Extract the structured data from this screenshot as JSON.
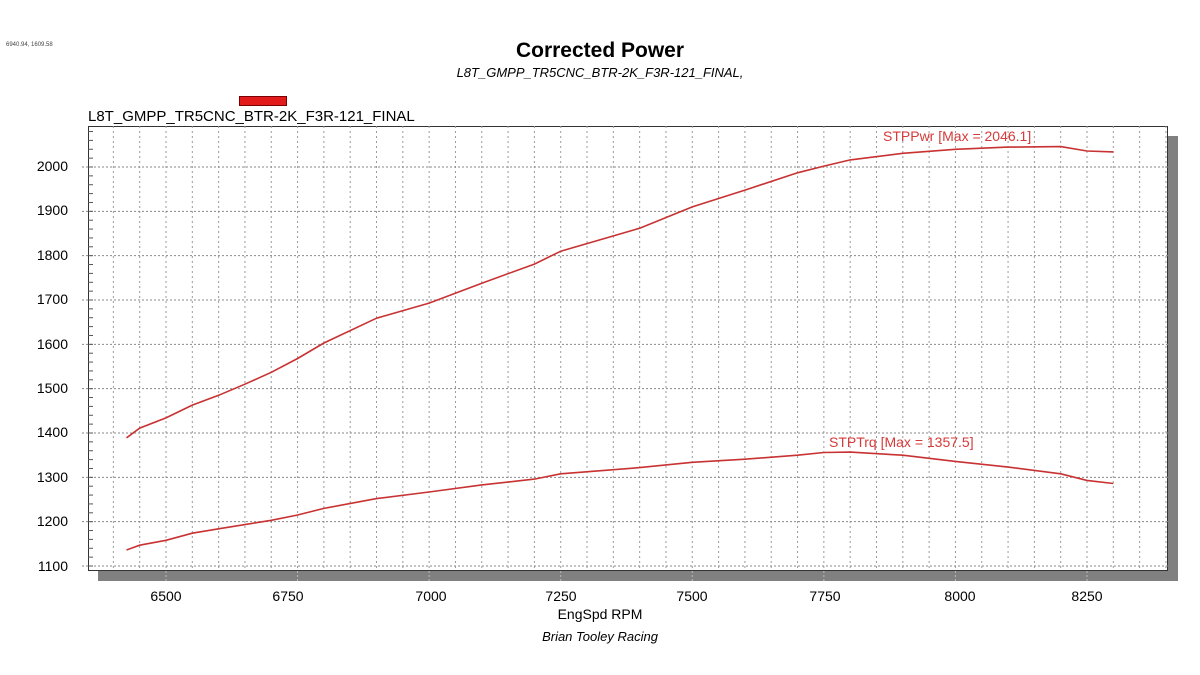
{
  "header": {
    "coords_readout": "6940.94, 1609.58",
    "title": "Corrected Power",
    "subtitle": "L8T_GMPP_TR5CNC_BTR-2K_F3R-121_FINAL,"
  },
  "legend": {
    "label": "L8T_GMPP_TR5CNC_BTR-2K_F3R-121_FINAL",
    "color": "#e31a1a"
  },
  "axes": {
    "x_ticks": [
      "6500",
      "6750",
      "7000",
      "7250",
      "7500",
      "7750",
      "8000",
      "8250"
    ],
    "y_ticks": [
      "2000",
      "1900",
      "1800",
      "1700",
      "1600",
      "1500",
      "1400",
      "1300",
      "1200",
      "1100"
    ],
    "xlabel": "EngSpd RPM"
  },
  "annotations": {
    "power": "STPPwr [Max = 2046.1]",
    "torque": "STPTrq [Max = 1357.5]"
  },
  "footer": "Brian Tooley Racing",
  "chart_data": {
    "type": "line",
    "title": "Corrected Power",
    "subtitle": "L8T_GMPP_TR5CNC_BTR-2K_F3R-121_FINAL,",
    "xlabel": "EngSpd RPM",
    "ylabel": "",
    "xlim": [
      6350,
      8450
    ],
    "ylim": [
      1090,
      2090
    ],
    "x_ticks": [
      6500,
      6750,
      7000,
      7250,
      7500,
      7750,
      8000,
      8250
    ],
    "y_ticks": [
      1100,
      1200,
      1300,
      1400,
      1500,
      1600,
      1700,
      1800,
      1900,
      2000
    ],
    "grid": true,
    "legend": [
      "L8T_GMPP_TR5CNC_BTR-2K_F3R-121_FINAL"
    ],
    "legend_position": "top-left",
    "series": [
      {
        "name": "STPPwr",
        "annotation": "STPPwr [Max = 2046.1]",
        "max": 2046.1,
        "color": "#c83232",
        "x": [
          6425,
          6450,
          6500,
          6550,
          6600,
          6650,
          6700,
          6750,
          6800,
          6900,
          7000,
          7100,
          7200,
          7250,
          7400,
          7500,
          7600,
          7700,
          7750,
          7800,
          7900,
          8000,
          8100,
          8200,
          8250,
          8300
        ],
        "values": [
          1389,
          1411,
          1434,
          1463,
          1485,
          1510,
          1537,
          1568,
          1603,
          1659,
          1693,
          1738,
          1781,
          1810,
          1862,
          1910,
          1948,
          1987,
          2002,
          2016,
          2031,
          2040,
          2045,
          2046,
          2036,
          2034
        ]
      },
      {
        "name": "STPTrq",
        "annotation": "STPTrq [Max = 1357.5]",
        "max": 1357.5,
        "color": "#c83232",
        "x": [
          6425,
          6450,
          6500,
          6550,
          6600,
          6700,
          6750,
          6800,
          6900,
          7000,
          7100,
          7200,
          7250,
          7400,
          7500,
          7600,
          7700,
          7750,
          7800,
          7900,
          8000,
          8100,
          8200,
          8250,
          8300
        ],
        "values": [
          1136,
          1147,
          1158,
          1174,
          1184,
          1203,
          1215,
          1230,
          1252,
          1267,
          1283,
          1296,
          1308,
          1322,
          1334,
          1341,
          1350,
          1356,
          1357,
          1350,
          1336,
          1323,
          1308,
          1293,
          1286
        ]
      }
    ]
  }
}
